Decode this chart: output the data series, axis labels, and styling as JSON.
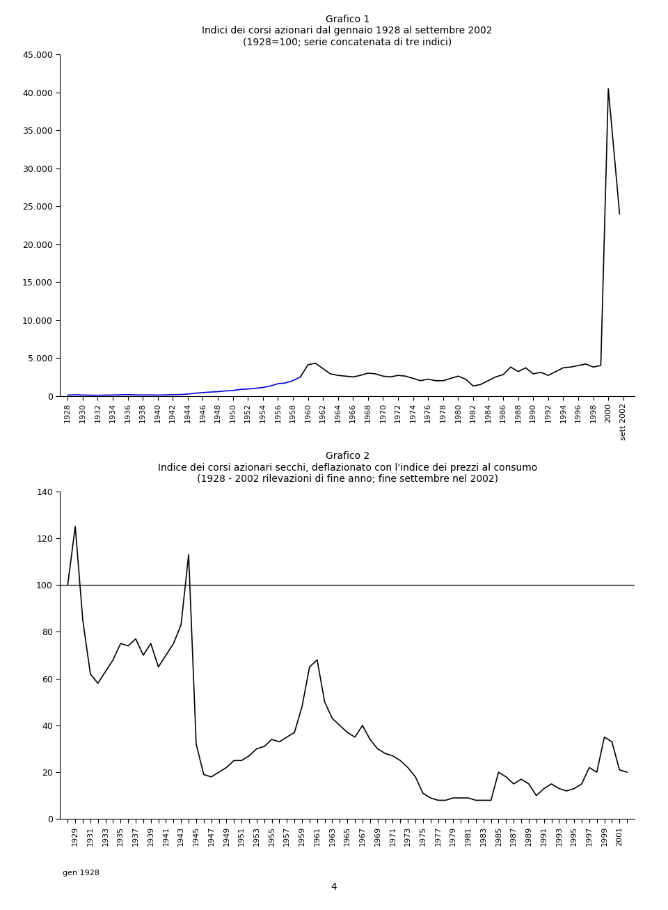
{
  "chart1": {
    "title1": "Grafico 1",
    "title2": "Indici dei corsi azionari dal gennaio 1928 al settembre 2002",
    "title3": "(1928=100; serie concatenata di tre indici)",
    "xlabel_last": "sett 2002",
    "ylim": [
      0,
      45000
    ],
    "yticks": [
      0,
      5000,
      10000,
      15000,
      20000,
      25000,
      30000,
      35000,
      40000,
      45000
    ],
    "ytick_labels": [
      "0",
      "5.000",
      "10.000",
      "15.000",
      "20.000",
      "25.000",
      "30.000",
      "35.000",
      "40.000",
      "45.000"
    ],
    "xtick_years": [
      1928,
      1930,
      1932,
      1934,
      1936,
      1938,
      1940,
      1942,
      1944,
      1946,
      1948,
      1950,
      1952,
      1954,
      1956,
      1958,
      1960,
      1962,
      1964,
      1966,
      1968,
      1970,
      1972,
      1974,
      1976,
      1978,
      1980,
      1982,
      1984,
      1986,
      1988,
      1990,
      1992,
      1994,
      1996,
      1998,
      2000
    ],
    "blue_segment_years": [
      1928,
      1929,
      1930,
      1931,
      1932,
      1933,
      1934,
      1935,
      1936,
      1937,
      1938,
      1939,
      1940,
      1941,
      1942,
      1943,
      1944,
      1945,
      1946,
      1947,
      1948,
      1949,
      1950,
      1951,
      1952,
      1953,
      1954,
      1955,
      1956,
      1957,
      1958,
      1959
    ],
    "blue_values": [
      100,
      140,
      110,
      90,
      75,
      100,
      110,
      140,
      160,
      135,
      110,
      130,
      100,
      130,
      150,
      180,
      230,
      350,
      430,
      500,
      550,
      650,
      700,
      850,
      900,
      1000,
      1100,
      1300,
      1600,
      1700,
      2000,
      2500
    ],
    "black_years": [
      1959,
      1960,
      1961,
      1962,
      1963,
      1964,
      1965,
      1966,
      1967,
      1968,
      1969,
      1970,
      1971,
      1972,
      1973,
      1974,
      1975,
      1976,
      1977,
      1978,
      1979,
      1980,
      1981,
      1982,
      1983,
      1984,
      1985,
      1986,
      1987,
      1988,
      1989,
      1990,
      1991,
      1992,
      1993,
      1994,
      1995,
      1996,
      1997,
      1998,
      1999,
      2000,
      2001.5
    ],
    "black_values": [
      2500,
      4100,
      4300,
      3600,
      2900,
      2700,
      2600,
      2500,
      2700,
      3000,
      2900,
      2600,
      2500,
      2700,
      2600,
      2300,
      2000,
      2200,
      2000,
      2000,
      2300,
      2600,
      2200,
      1300,
      1500,
      2000,
      2500,
      2800,
      3800,
      3200,
      3700,
      2900,
      3100,
      2700,
      3200,
      3700,
      3800,
      4000,
      4200,
      3800,
      4000,
      40500,
      24000
    ]
  },
  "chart2": {
    "title1": "Grafico 2",
    "title2": "Indice dei corsi azionari secchi, deflazionato con l'indice dei prezzi al consumo",
    "title3": "(1928 - 2002 rilevazioni di fine anno; fine settembre nel 2002)",
    "xlabel_first": "gen 1928",
    "ylim": [
      0,
      140
    ],
    "yticks": [
      0,
      20,
      40,
      60,
      80,
      100,
      120,
      140
    ],
    "hline_y": 100,
    "years": [
      1928,
      1929,
      1930,
      1931,
      1932,
      1933,
      1934,
      1935,
      1936,
      1937,
      1938,
      1939,
      1940,
      1941,
      1942,
      1943,
      1944,
      1945,
      1946,
      1947,
      1948,
      1949,
      1950,
      1951,
      1952,
      1953,
      1954,
      1955,
      1956,
      1957,
      1958,
      1959,
      1960,
      1961,
      1962,
      1963,
      1964,
      1965,
      1966,
      1967,
      1968,
      1969,
      1970,
      1971,
      1972,
      1973,
      1974,
      1975,
      1976,
      1977,
      1978,
      1979,
      1980,
      1981,
      1982,
      1983,
      1984,
      1985,
      1986,
      1987,
      1988,
      1989,
      1990,
      1991,
      1992,
      1993,
      1994,
      1995,
      1996,
      1997,
      1998,
      1999,
      2000,
      2001,
      2002
    ],
    "values": [
      100,
      125,
      85,
      62,
      58,
      63,
      68,
      75,
      74,
      77,
      70,
      75,
      65,
      70,
      75,
      83,
      113,
      32,
      19,
      18,
      20,
      22,
      25,
      25,
      27,
      30,
      31,
      34,
      33,
      35,
      37,
      48,
      65,
      68,
      50,
      43,
      40,
      37,
      35,
      40,
      34,
      30,
      28,
      27,
      25,
      22,
      18,
      11,
      9,
      8,
      8,
      9,
      9,
      9,
      8,
      8,
      8,
      20,
      18,
      15,
      17,
      15,
      10,
      13,
      15,
      13,
      12,
      13,
      15,
      22,
      20,
      35,
      33,
      21,
      20
    ],
    "xtick_years": [
      1928,
      1929,
      1931,
      1933,
      1935,
      1937,
      1939,
      1941,
      1943,
      1945,
      1947,
      1949,
      1951,
      1953,
      1955,
      1957,
      1959,
      1961,
      1963,
      1965,
      1967,
      1969,
      1971,
      1973,
      1975,
      1977,
      1979,
      1981,
      1983,
      1985,
      1987,
      1989,
      1991,
      1993,
      1995,
      1997,
      1999,
      2001
    ]
  },
  "page_number": "4",
  "bg_color": "#ffffff",
  "line_color_black": "#000000",
  "line_color_blue": "#0000cc"
}
